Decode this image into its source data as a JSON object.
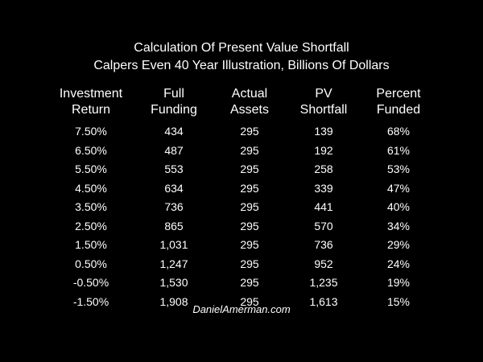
{
  "title": "Calculation Of Present Value Shortfall",
  "subtitle": "Calpers Even 40 Year Illustration, Billions Of Dollars",
  "footer": "DanielAmerman.com",
  "colors": {
    "background": "#000000",
    "text": "#ffffff"
  },
  "chart_data": {
    "type": "table",
    "title": "Calculation Of Present Value Shortfall",
    "subtitle": "Calpers Even 40 Year Illustration, Billions Of Dollars",
    "columns": [
      [
        "Investment",
        "Return"
      ],
      [
        "Full",
        "Funding"
      ],
      [
        "Actual",
        "Assets"
      ],
      [
        "PV",
        "Shortfall"
      ],
      [
        "Percent",
        "Funded"
      ]
    ],
    "rows": [
      [
        "7.50%",
        "434",
        "295",
        "139",
        "68%"
      ],
      [
        "6.50%",
        "487",
        "295",
        "192",
        "61%"
      ],
      [
        "5.50%",
        "553",
        "295",
        "258",
        "53%"
      ],
      [
        "4.50%",
        "634",
        "295",
        "339",
        "47%"
      ],
      [
        "3.50%",
        "736",
        "295",
        "441",
        "40%"
      ],
      [
        "2.50%",
        "865",
        "295",
        "570",
        "34%"
      ],
      [
        "1.50%",
        "1,031",
        "295",
        "736",
        "29%"
      ],
      [
        "0.50%",
        "1,247",
        "295",
        "952",
        "24%"
      ],
      [
        "-0.50%",
        "1,530",
        "295",
        "1,235",
        "19%"
      ],
      [
        "-1.50%",
        "1,908",
        "295",
        "1,613",
        "15%"
      ]
    ]
  }
}
